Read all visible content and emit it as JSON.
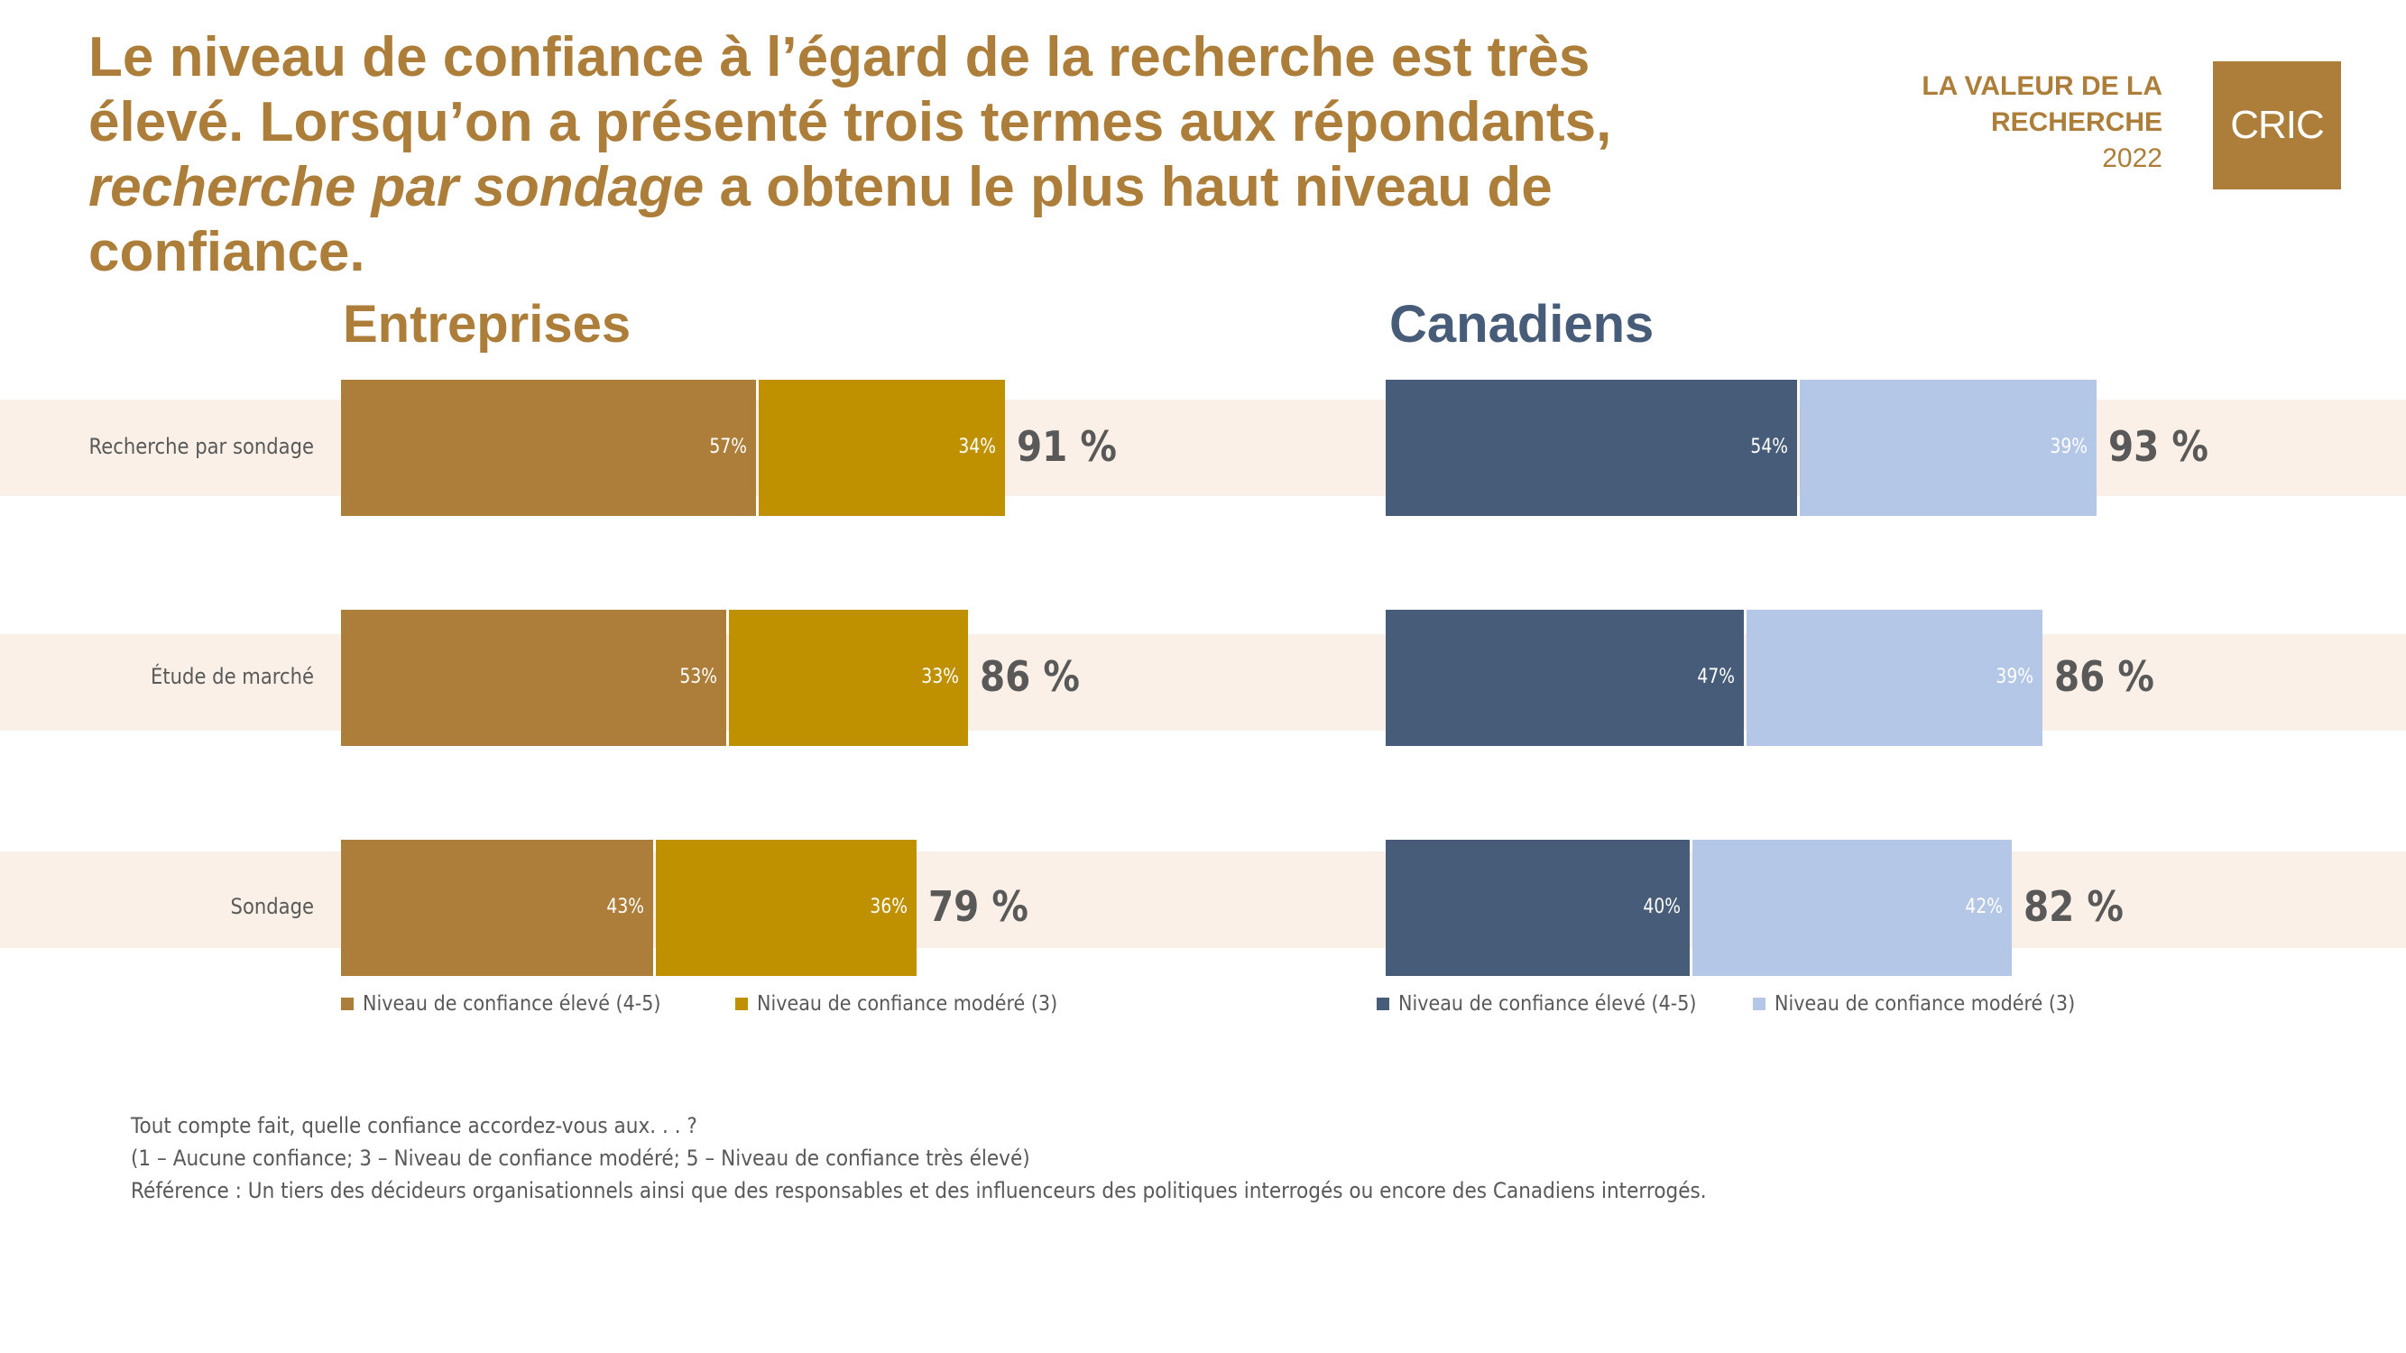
{
  "header": {
    "headline_part1": "Le niveau de confiance à l’égard de la recherche est très élevé. Lorsqu’on a présenté trois termes aux répondants, ",
    "headline_emphasis": "recherche par sondage",
    "headline_part2": " a obtenu le plus haut niveau de confiance.",
    "brand_line1": "LA VALEUR DE LA",
    "brand_line2": "RECHERCHE",
    "brand_line3": "2022",
    "logo_text": "CRIC"
  },
  "colors": {
    "brand_gold": "#ac7e3a",
    "band": "#fbf0e7",
    "text_gray": "#595959",
    "entreprises_high": "#ac7e3a",
    "entreprises_moderate": "#bf9000",
    "canadiens_high": "#475c78",
    "canadiens_moderate": "#b4c7e6",
    "canadiens_title": "#475c78"
  },
  "chart_data": [
    {
      "type": "bar",
      "orientation": "horizontal",
      "stacked": true,
      "title": "Entreprises",
      "categories": [
        "Recherche par sondage",
        "Étude de marché",
        "Sondage"
      ],
      "series": [
        {
          "name": "Niveau de confiance élevé (4-5)",
          "values": [
            57,
            53,
            43
          ],
          "labels": [
            "57%",
            "53%",
            "43%"
          ]
        },
        {
          "name": "Niveau de confiance modéré (3)",
          "values": [
            34,
            33,
            36
          ],
          "labels": [
            "34%",
            "33%",
            "36%"
          ]
        }
      ],
      "totals": [
        "91 %",
        "86 %",
        "79 %"
      ],
      "xlabel": "",
      "ylabel": "",
      "xlim": [
        0,
        100
      ],
      "grid": false,
      "legend": "bottom"
    },
    {
      "type": "bar",
      "orientation": "horizontal",
      "stacked": true,
      "title": "Canadiens",
      "categories": [
        "Recherche par sondage",
        "Étude de marché",
        "Sondage"
      ],
      "series": [
        {
          "name": "Niveau de confiance élevé (4-5)",
          "values": [
            54,
            47,
            40
          ],
          "labels": [
            "54%",
            "47%",
            "40%"
          ]
        },
        {
          "name": "Niveau de confiance modéré (3)",
          "values": [
            39,
            39,
            42
          ],
          "labels": [
            "39%",
            "39%",
            "42%"
          ]
        }
      ],
      "totals": [
        "93 %",
        "86 %",
        "82 %"
      ],
      "xlabel": "",
      "ylabel": "",
      "xlim": [
        0,
        100
      ],
      "grid": false,
      "legend": "bottom"
    }
  ],
  "footnote": {
    "line1": "Tout compte fait, quelle confiance accordez-vous aux. . . ?",
    "line2": "(1 – Aucune confiance; 3 – Niveau de confiance modéré; 5 – Niveau de confiance très élevé)",
    "line3": "Référence : Un tiers des décideurs organisationnels ainsi que des responsables et des influenceurs des politiques interrogés ou encore des Canadiens interrogés."
  }
}
